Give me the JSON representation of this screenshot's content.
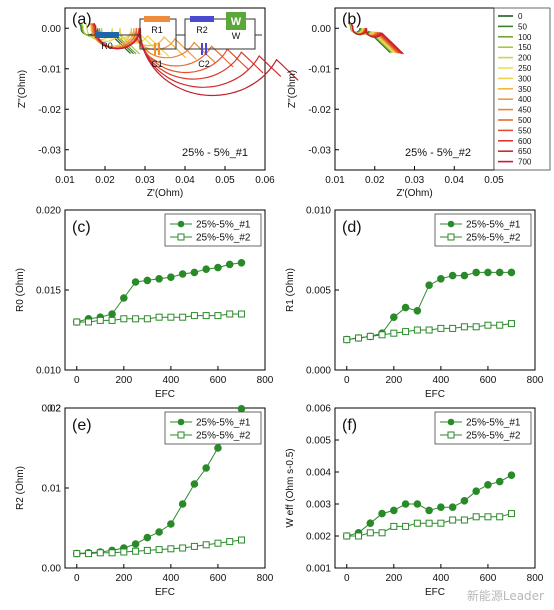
{
  "watermark": "新能源Leader",
  "legend_cycles": [
    "0",
    "50",
    "100",
    "150",
    "200",
    "250",
    "300",
    "350",
    "400",
    "450",
    "500",
    "550",
    "600",
    "650",
    "700"
  ],
  "legend_colors": [
    "#1f5e1f",
    "#3d7f2a",
    "#6fa63a",
    "#a9c745",
    "#d2d34b",
    "#ece15a",
    "#f2cf4a",
    "#f1b83f",
    "#ef9c3a",
    "#ec8335",
    "#e76a31",
    "#e0522e",
    "#d83a2c",
    "#cf2a2c",
    "#c41d2c"
  ],
  "circuit": {
    "r0": "R0",
    "r1": "R1",
    "c1": "C1",
    "r2": "R2",
    "c2": "C2",
    "w": "W",
    "w_box": "W"
  },
  "chart_data": [
    {
      "panel": "(a)",
      "type": "line",
      "xlabel": "Z'(Ohm)",
      "ylabel": "Z''(Ohm)",
      "xlim": [
        0.01,
        0.06
      ],
      "ylim": [
        -0.035,
        0.005
      ],
      "xticks": [
        "0.01",
        "0.02",
        "0.03",
        "0.04",
        "0.05",
        "0.06"
      ],
      "yticks": [
        "-0.03",
        "-0.02",
        "-0.01",
        "0.00"
      ],
      "annotation": "25% - 5%_#1",
      "series_params": {
        "r0": [
          0.013,
          0.0132,
          0.0133,
          0.0135,
          0.0145,
          0.0155,
          0.0156,
          0.0157,
          0.0158,
          0.016,
          0.0161,
          0.0163,
          0.0164,
          0.0166,
          0.0167
        ],
        "r1": [
          0.002,
          0.0022,
          0.0024,
          0.0026,
          0.0035,
          0.004,
          0.004,
          0.0055,
          0.0058,
          0.006,
          0.006,
          0.0062,
          0.0062,
          0.0062,
          0.0062
        ],
        "r2": [
          0.002,
          0.0021,
          0.0022,
          0.0024,
          0.0026,
          0.003,
          0.004,
          0.0048,
          0.006,
          0.0085,
          0.011,
          0.013,
          0.015,
          0.0175,
          0.02
        ]
      }
    },
    {
      "panel": "(b)",
      "type": "line",
      "xlabel": "Z'(Ohm)",
      "ylabel": "Z''(Ohm)",
      "xlim": [
        0.01,
        0.05
      ],
      "ylim": [
        -0.035,
        0.005
      ],
      "xticks": [
        "0.01",
        "0.02",
        "0.03",
        "0.04",
        "0.05"
      ],
      "yticks": [
        "-0.03",
        "-0.02",
        "-0.01",
        "0.00"
      ],
      "annotation": "25% - 5%_#2",
      "series_params": {
        "r0": [
          0.013,
          0.013,
          0.0131,
          0.0131,
          0.0132,
          0.0132,
          0.0132,
          0.0133,
          0.0133,
          0.0133,
          0.0134,
          0.0134,
          0.0134,
          0.0135,
          0.0135
        ],
        "r1": [
          0.0019,
          0.002,
          0.0021,
          0.0022,
          0.0023,
          0.0024,
          0.0025,
          0.0025,
          0.0026,
          0.0026,
          0.0027,
          0.0027,
          0.0028,
          0.0028,
          0.0029
        ],
        "r2": [
          0.0019,
          0.0019,
          0.002,
          0.002,
          0.0021,
          0.0022,
          0.0023,
          0.0024,
          0.0025,
          0.0026,
          0.0027,
          0.0028,
          0.003,
          0.0032,
          0.0034
        ]
      }
    },
    {
      "panel": "(c)",
      "type": "line",
      "xlabel": "EFC",
      "ylabel": "R0 (Ohm)",
      "xlim": [
        -50,
        800
      ],
      "ylim": [
        0.01,
        0.02
      ],
      "xticks": [
        "0",
        "200",
        "400",
        "600",
        "800"
      ],
      "yticks": [
        "0.010",
        "0.015",
        "0.020"
      ],
      "x": [
        0,
        50,
        100,
        150,
        200,
        250,
        300,
        350,
        400,
        450,
        500,
        550,
        600,
        650,
        700
      ],
      "series": [
        {
          "name": "25%-5%_#1",
          "values": [
            0.013,
            0.0132,
            0.0133,
            0.0135,
            0.0145,
            0.0155,
            0.0156,
            0.0157,
            0.0158,
            0.016,
            0.0161,
            0.0163,
            0.0164,
            0.0166,
            0.0167
          ]
        },
        {
          "name": "25%-5%_#2",
          "values": [
            0.013,
            0.013,
            0.0131,
            0.0131,
            0.0132,
            0.0132,
            0.0132,
            0.0133,
            0.0133,
            0.0133,
            0.0134,
            0.0134,
            0.0134,
            0.0135,
            0.0135
          ]
        }
      ]
    },
    {
      "panel": "(d)",
      "type": "line",
      "xlabel": "EFC",
      "ylabel": "R1 (Ohm)",
      "xlim": [
        -50,
        800
      ],
      "ylim": [
        0.0,
        0.01
      ],
      "xticks": [
        "0",
        "200",
        "400",
        "600",
        "800"
      ],
      "yticks": [
        "0.000",
        "0.005",
        "0.010"
      ],
      "x": [
        0,
        50,
        100,
        150,
        200,
        250,
        300,
        350,
        400,
        450,
        500,
        550,
        600,
        650,
        700
      ],
      "series": [
        {
          "name": "25%-5%_#1",
          "values": [
            0.0019,
            0.002,
            0.0021,
            0.0023,
            0.0033,
            0.0039,
            0.0037,
            0.0053,
            0.0057,
            0.0059,
            0.0059,
            0.0061,
            0.0061,
            0.0061,
            0.0061
          ]
        },
        {
          "name": "25%-5%_#2",
          "values": [
            0.0019,
            0.002,
            0.0021,
            0.0022,
            0.0023,
            0.0024,
            0.0025,
            0.0025,
            0.0026,
            0.0026,
            0.0027,
            0.0027,
            0.0028,
            0.0028,
            0.0029
          ]
        }
      ]
    },
    {
      "panel": "(e)",
      "type": "line",
      "xlabel": "EFC",
      "ylabel": "R2 (Ohm)",
      "xlim": [
        -50,
        800
      ],
      "ylim": [
        0.0,
        0.02
      ],
      "xticks": [
        "0",
        "200",
        "400",
        "600",
        "800"
      ],
      "yticks": [
        "0.00",
        "0.01",
        "0.02"
      ],
      "y_extra_tick": "0.2",
      "x": [
        0,
        50,
        100,
        150,
        200,
        250,
        300,
        350,
        400,
        450,
        500,
        550,
        600,
        650,
        700
      ],
      "series": [
        {
          "name": "25%-5%_#1",
          "values": [
            0.0018,
            0.0019,
            0.002,
            0.0022,
            0.0025,
            0.003,
            0.0038,
            0.0045,
            0.0055,
            0.008,
            0.0105,
            0.0125,
            0.015,
            0.0175,
            0.0199
          ]
        },
        {
          "name": "25%-5%_#2",
          "values": [
            0.0018,
            0.0018,
            0.0019,
            0.0019,
            0.002,
            0.0021,
            0.0022,
            0.0023,
            0.0024,
            0.0025,
            0.0027,
            0.0029,
            0.0031,
            0.0033,
            0.0035
          ]
        }
      ]
    },
    {
      "panel": "(f)",
      "type": "line",
      "xlabel": "EFC",
      "ylabel": "W eff (Ohm s-0.5)",
      "xlim": [
        -50,
        800
      ],
      "ylim": [
        0.001,
        0.006
      ],
      "xticks": [
        "0",
        "200",
        "400",
        "600",
        "800"
      ],
      "yticks": [
        "0.001",
        "0.002",
        "0.003",
        "0.004",
        "0.005",
        "0.006"
      ],
      "x": [
        0,
        50,
        100,
        150,
        200,
        250,
        300,
        350,
        400,
        450,
        500,
        550,
        600,
        650,
        700
      ],
      "series": [
        {
          "name": "25%-5%_#1",
          "values": [
            0.002,
            0.0021,
            0.0024,
            0.0027,
            0.0028,
            0.003,
            0.003,
            0.0028,
            0.0029,
            0.0029,
            0.0031,
            0.0034,
            0.0036,
            0.0037,
            0.0039
          ]
        },
        {
          "name": "25%-5%_#2",
          "values": [
            0.002,
            0.002,
            0.0021,
            0.0021,
            0.0023,
            0.0023,
            0.0024,
            0.0024,
            0.0024,
            0.0025,
            0.0025,
            0.0026,
            0.0026,
            0.0026,
            0.0027
          ]
        }
      ]
    }
  ]
}
